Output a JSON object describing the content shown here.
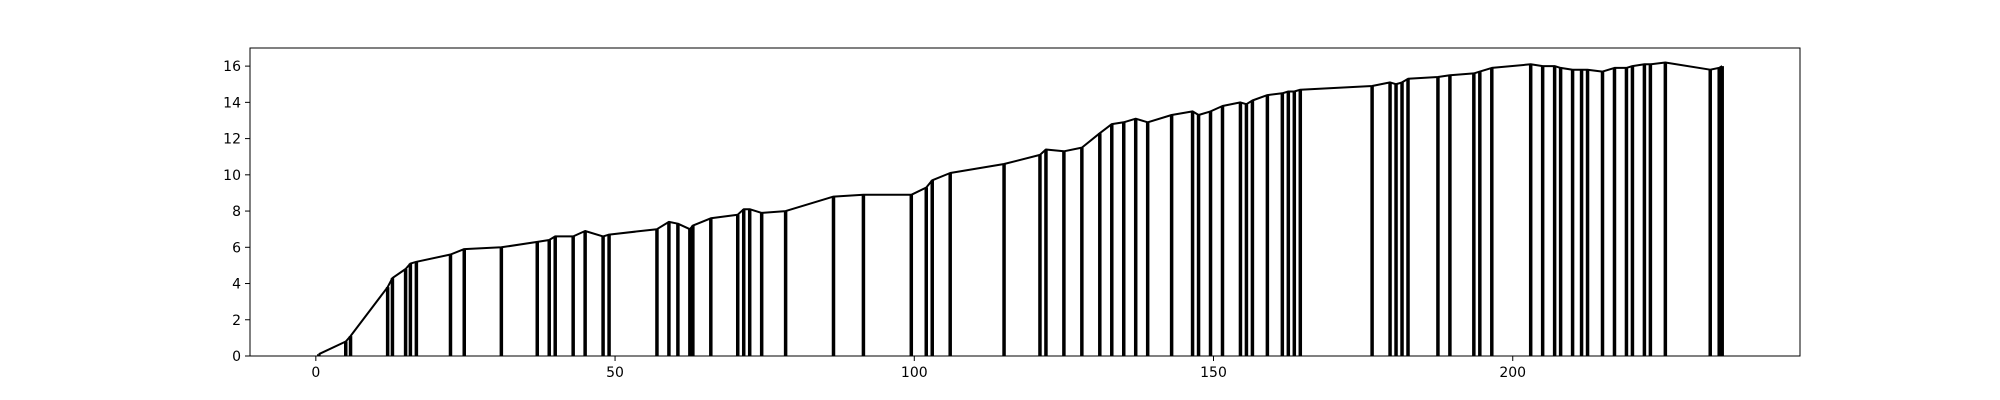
{
  "chart_data": {
    "type": "line",
    "title": "",
    "xlabel": "",
    "ylabel": "",
    "xlim": [
      -11,
      248
    ],
    "ylim": [
      0,
      17
    ],
    "x_ticks": [
      0,
      50,
      100,
      150,
      200
    ],
    "y_ticks": [
      0,
      2,
      4,
      6,
      8,
      10,
      12,
      14,
      16
    ],
    "grid": false,
    "line_color": "#000000",
    "points": [
      [
        0.5,
        0.1
      ],
      [
        5,
        0.8
      ],
      [
        5.8,
        1.1
      ],
      [
        12,
        3.8
      ],
      [
        12.8,
        4.3
      ],
      [
        15,
        4.8
      ],
      [
        15.8,
        5.1
      ],
      [
        16.8,
        5.2
      ],
      [
        22.5,
        5.6
      ],
      [
        24.8,
        5.9
      ],
      [
        31,
        6.0
      ],
      [
        37,
        6.3
      ],
      [
        39,
        6.4
      ],
      [
        40,
        6.6
      ],
      [
        43,
        6.6
      ],
      [
        45,
        6.9
      ],
      [
        48,
        6.6
      ],
      [
        49,
        6.7
      ],
      [
        57,
        7.0
      ],
      [
        59,
        7.4
      ],
      [
        60.5,
        7.3
      ],
      [
        62.5,
        7.0
      ],
      [
        63,
        7.2
      ],
      [
        66,
        7.6
      ],
      [
        70.5,
        7.8
      ],
      [
        71.5,
        8.1
      ],
      [
        72.5,
        8.1
      ],
      [
        74.5,
        7.9
      ],
      [
        78.5,
        8.0
      ],
      [
        86.5,
        8.8
      ],
      [
        91.5,
        8.9
      ],
      [
        99.5,
        8.9
      ],
      [
        102,
        9.3
      ],
      [
        103,
        9.7
      ],
      [
        106,
        10.1
      ],
      [
        115,
        10.6
      ],
      [
        121,
        11.1
      ],
      [
        122,
        11.4
      ],
      [
        125,
        11.3
      ],
      [
        128,
        11.5
      ],
      [
        131,
        12.3
      ],
      [
        133,
        12.8
      ],
      [
        135,
        12.9
      ],
      [
        137,
        13.1
      ],
      [
        139,
        12.9
      ],
      [
        143,
        13.3
      ],
      [
        146.5,
        13.5
      ],
      [
        147.5,
        13.3
      ],
      [
        149.5,
        13.5
      ],
      [
        151.5,
        13.8
      ],
      [
        154.5,
        14.0
      ],
      [
        155.5,
        13.9
      ],
      [
        156.5,
        14.1
      ],
      [
        159,
        14.4
      ],
      [
        161.5,
        14.5
      ],
      [
        162.5,
        14.6
      ],
      [
        163.5,
        14.6
      ],
      [
        164.5,
        14.7
      ],
      [
        176.5,
        14.9
      ],
      [
        179.5,
        15.1
      ],
      [
        180.5,
        15.0
      ],
      [
        181.5,
        15.1
      ],
      [
        182.5,
        15.3
      ],
      [
        187.5,
        15.4
      ],
      [
        189.5,
        15.5
      ],
      [
        193.5,
        15.6
      ],
      [
        194.5,
        15.7
      ],
      [
        196.5,
        15.9
      ],
      [
        203,
        16.1
      ],
      [
        205,
        16.0
      ],
      [
        207,
        16.0
      ],
      [
        208,
        15.9
      ],
      [
        210,
        15.8
      ],
      [
        211.5,
        15.8
      ],
      [
        212.5,
        15.8
      ],
      [
        215,
        15.7
      ],
      [
        217,
        15.9
      ],
      [
        219,
        15.9
      ],
      [
        220,
        16.0
      ],
      [
        222,
        16.1
      ],
      [
        223,
        16.1
      ],
      [
        225.5,
        16.2
      ],
      [
        233,
        15.8
      ],
      [
        234.5,
        15.9
      ],
      [
        235,
        16.0
      ]
    ]
  }
}
